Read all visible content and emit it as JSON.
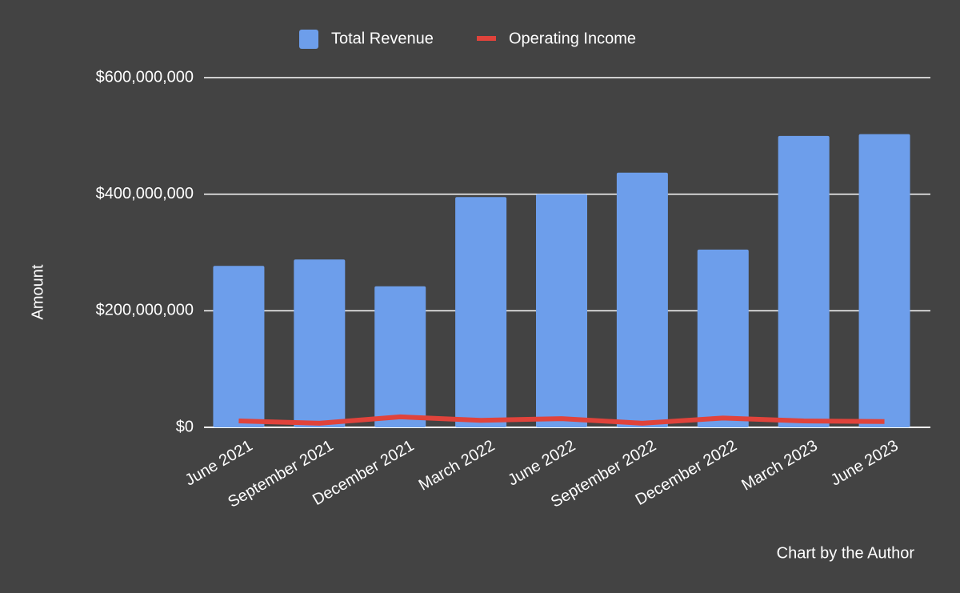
{
  "chart_data": {
    "type": "bar",
    "y_label": "Amount",
    "note": "Chart by the Author",
    "categories": [
      "June 2021",
      "September 2021",
      "December 2021",
      "March 2022",
      "June 2022",
      "September 2022",
      "December 2022",
      "March 2023",
      "June 2023"
    ],
    "series": [
      {
        "name": "Total Revenue",
        "type": "bar",
        "color": "#6d9eeb",
        "values": [
          277000000,
          288000000,
          242000000,
          395000000,
          400000000,
          437000000,
          305000000,
          500000000,
          503000000
        ]
      },
      {
        "name": "Operating Income",
        "type": "line",
        "color": "#e0433b",
        "values": [
          11000000,
          7000000,
          18000000,
          12000000,
          15000000,
          7000000,
          16000000,
          11000000,
          10000000
        ]
      }
    ],
    "ylim": [
      0,
      600000000
    ],
    "yticks": [
      {
        "value": 0,
        "label": "$0"
      },
      {
        "value": 200000000,
        "label": "$200,000,000"
      },
      {
        "value": 400000000,
        "label": "$400,000,000"
      },
      {
        "value": 600000000,
        "label": "$600,000,000"
      }
    ],
    "grid": true,
    "legend": "top"
  }
}
